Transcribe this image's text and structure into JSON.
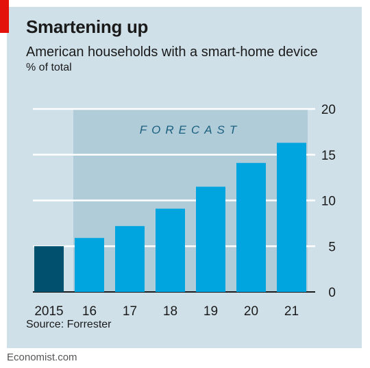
{
  "header": {
    "title": "Smartening up",
    "subtitle": "American households with a smart-home device",
    "unit": "% of total"
  },
  "source": "Source: Forrester",
  "footer": "Economist.com",
  "colors": {
    "actual": "#00506e",
    "forecast": "#00a5e0",
    "forecast_band": "#b0ccd9",
    "accent": "#e3120b"
  },
  "chart_data": {
    "type": "bar",
    "categories": [
      "2015",
      "16",
      "17",
      "18",
      "19",
      "20",
      "21"
    ],
    "values": [
      5.0,
      5.9,
      7.2,
      9.1,
      11.5,
      14.1,
      16.3
    ],
    "title": "Smartening up",
    "subtitle": "American households with a smart-home device",
    "xlabel": "",
    "ylabel": "% of total",
    "ylim": [
      0,
      20
    ],
    "yticks": [
      0,
      5,
      10,
      15,
      20
    ],
    "y_axis_side": "right",
    "grid": true,
    "forecast_start_index": 1,
    "forecast_label": "FORECAST"
  }
}
